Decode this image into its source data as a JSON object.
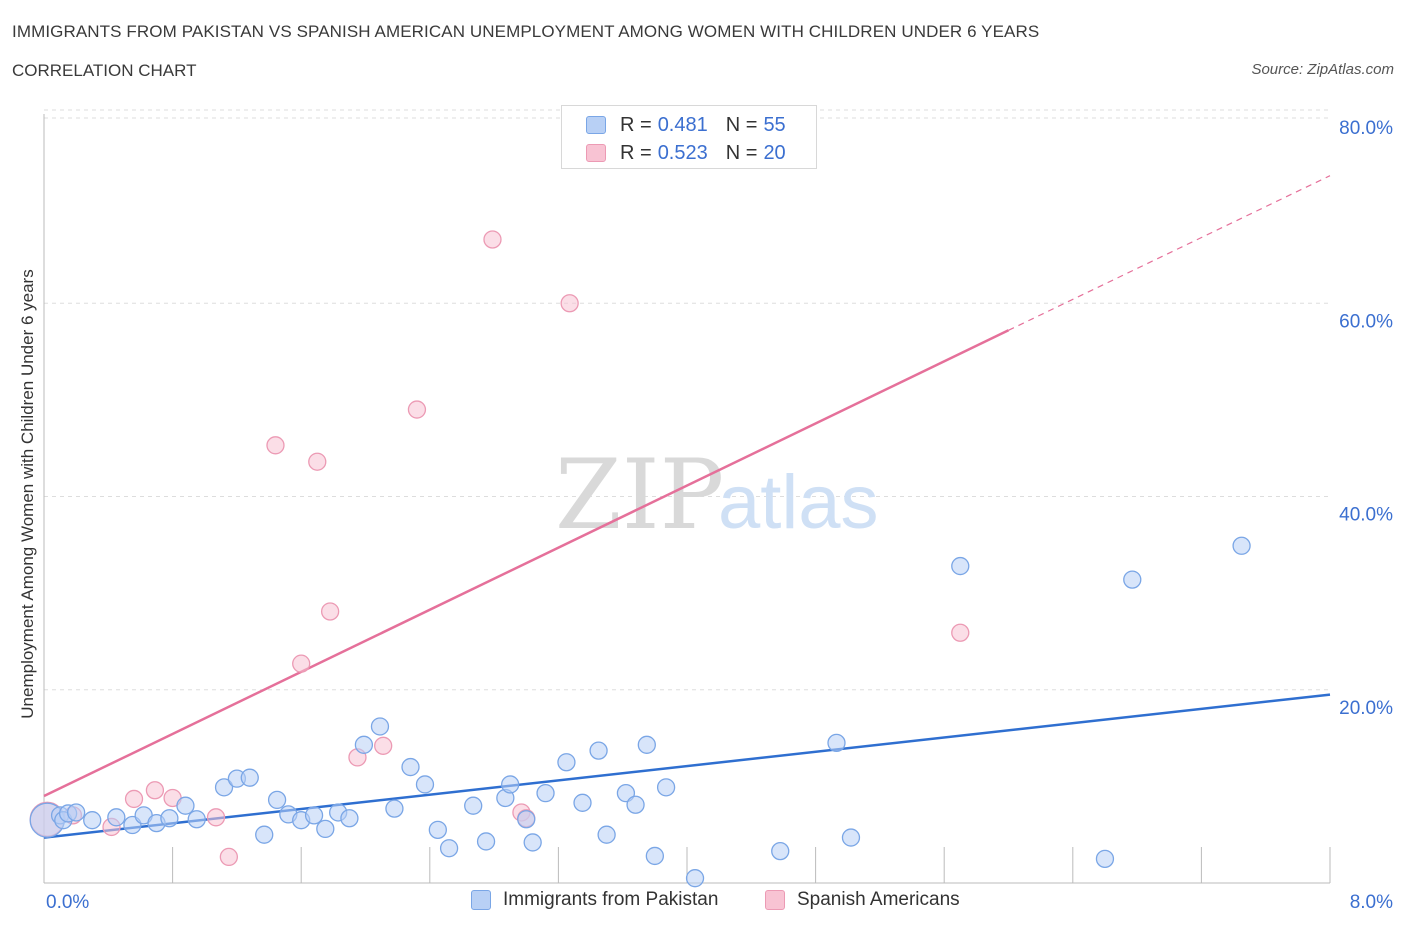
{
  "header": {
    "title": "IMMIGRANTS FROM PAKISTAN VS SPANISH AMERICAN UNEMPLOYMENT AMONG WOMEN WITH CHILDREN UNDER 6 YEARS",
    "subtitle": "CORRELATION CHART",
    "source": "Source: ZipAtlas.com"
  },
  "watermark": {
    "zip": "ZIP",
    "atlas": "atlas"
  },
  "legend_top": [
    {
      "r_label": "R =",
      "r_value": "0.481",
      "n_label": "N =",
      "n_value": "55"
    },
    {
      "r_label": "R =",
      "r_value": "0.523",
      "n_label": "N =",
      "n_value": "20"
    }
  ],
  "legend_bottom": [
    "Immigrants from Pakistan",
    "Spanish Americans"
  ],
  "colors": {
    "blue_fill": "#b8d0f5",
    "blue_stroke": "#7aa6e6",
    "blue_line": "#2f6fd0",
    "pink_fill": "#f8c3d3",
    "pink_stroke": "#ec9ab4",
    "pink_line": "#e5709a",
    "tick_text": "#3b6fd0",
    "grid": "#dddddd"
  },
  "chart_data": {
    "type": "scatter",
    "title": "IMMIGRANTS FROM PAKISTAN VS SPANISH AMERICAN UNEMPLOYMENT AMONG WOMEN WITH CHILDREN UNDER 6 YEARS",
    "xlabel": "",
    "ylabel": "Unemployment Among Women with Children Under 6 years",
    "xlim": [
      0,
      8
    ],
    "ylim": [
      0,
      80
    ],
    "x_tick_labels": [
      "0.0%",
      "8.0%"
    ],
    "y_ticks": [
      20,
      40,
      60,
      80
    ],
    "y_tick_labels": [
      "20.0%",
      "40.0%",
      "60.0%",
      "80.0%"
    ],
    "grid": true,
    "series": [
      {
        "name": "Immigrants from Pakistan",
        "r": 0.481,
        "n": 55,
        "trend": {
          "x0": 0,
          "y0": 4.7,
          "x1": 8,
          "y1": 19.5
        },
        "points": [
          {
            "x": 0.02,
            "y": 6.5,
            "big": true
          },
          {
            "x": 0.1,
            "y": 7.0
          },
          {
            "x": 0.12,
            "y": 6.5
          },
          {
            "x": 0.15,
            "y": 7.2
          },
          {
            "x": 0.2,
            "y": 7.3
          },
          {
            "x": 0.3,
            "y": 6.5
          },
          {
            "x": 0.45,
            "y": 6.8
          },
          {
            "x": 0.55,
            "y": 6.0
          },
          {
            "x": 0.62,
            "y": 7.0
          },
          {
            "x": 0.7,
            "y": 6.2
          },
          {
            "x": 0.78,
            "y": 6.7
          },
          {
            "x": 0.88,
            "y": 8.0
          },
          {
            "x": 0.95,
            "y": 6.6
          },
          {
            "x": 1.12,
            "y": 9.9
          },
          {
            "x": 1.2,
            "y": 10.8
          },
          {
            "x": 1.28,
            "y": 10.9
          },
          {
            "x": 1.37,
            "y": 5.0
          },
          {
            "x": 1.45,
            "y": 8.6
          },
          {
            "x": 1.52,
            "y": 7.1
          },
          {
            "x": 1.6,
            "y": 6.5
          },
          {
            "x": 1.68,
            "y": 7.0
          },
          {
            "x": 1.75,
            "y": 5.6
          },
          {
            "x": 1.83,
            "y": 7.3
          },
          {
            "x": 1.9,
            "y": 6.7
          },
          {
            "x": 1.99,
            "y": 14.3
          },
          {
            "x": 2.09,
            "y": 16.2
          },
          {
            "x": 2.18,
            "y": 7.7
          },
          {
            "x": 2.28,
            "y": 12.0
          },
          {
            "x": 2.37,
            "y": 10.2
          },
          {
            "x": 2.45,
            "y": 5.5
          },
          {
            "x": 2.52,
            "y": 3.6
          },
          {
            "x": 2.67,
            "y": 8.0
          },
          {
            "x": 2.75,
            "y": 4.3
          },
          {
            "x": 2.87,
            "y": 8.8
          },
          {
            "x": 2.9,
            "y": 10.2
          },
          {
            "x": 3.0,
            "y": 6.6
          },
          {
            "x": 3.04,
            "y": 4.2
          },
          {
            "x": 3.12,
            "y": 9.3
          },
          {
            "x": 3.25,
            "y": 12.5
          },
          {
            "x": 3.35,
            "y": 8.3
          },
          {
            "x": 3.45,
            "y": 13.7
          },
          {
            "x": 3.5,
            "y": 5.0
          },
          {
            "x": 3.62,
            "y": 9.3
          },
          {
            "x": 3.68,
            "y": 8.1
          },
          {
            "x": 3.75,
            "y": 14.3
          },
          {
            "x": 3.8,
            "y": 2.8
          },
          {
            "x": 3.87,
            "y": 9.9
          },
          {
            "x": 4.05,
            "y": 0.5
          },
          {
            "x": 4.58,
            "y": 3.3
          },
          {
            "x": 4.93,
            "y": 14.5
          },
          {
            "x": 5.02,
            "y": 4.7
          },
          {
            "x": 5.7,
            "y": 32.8
          },
          {
            "x": 6.6,
            "y": 2.5
          },
          {
            "x": 6.77,
            "y": 31.4
          },
          {
            "x": 7.45,
            "y": 34.9
          }
        ]
      },
      {
        "name": "Spanish Americans",
        "r": 0.523,
        "n": 20,
        "trend": {
          "x0": 0,
          "y0": 9.0,
          "x1": 6.0,
          "y1": 57.2
        },
        "trend_dashed": {
          "x0": 6.0,
          "y0": 57.2,
          "x1": 8.0,
          "y1": 73.2
        },
        "points": [
          {
            "x": 0.02,
            "y": 6.6,
            "big": true
          },
          {
            "x": 0.18,
            "y": 7.0
          },
          {
            "x": 0.42,
            "y": 5.8
          },
          {
            "x": 0.56,
            "y": 8.7
          },
          {
            "x": 0.69,
            "y": 9.6
          },
          {
            "x": 0.8,
            "y": 8.8
          },
          {
            "x": 1.07,
            "y": 6.8
          },
          {
            "x": 1.15,
            "y": 2.7
          },
          {
            "x": 1.44,
            "y": 45.3
          },
          {
            "x": 1.6,
            "y": 22.7
          },
          {
            "x": 1.7,
            "y": 43.6
          },
          {
            "x": 1.78,
            "y": 28.1
          },
          {
            "x": 1.95,
            "y": 13.0
          },
          {
            "x": 2.11,
            "y": 14.2
          },
          {
            "x": 2.32,
            "y": 49.0
          },
          {
            "x": 2.79,
            "y": 66.6
          },
          {
            "x": 2.97,
            "y": 7.3
          },
          {
            "x": 3.0,
            "y": 6.7
          },
          {
            "x": 3.27,
            "y": 60.0
          },
          {
            "x": 5.7,
            "y": 25.9
          }
        ]
      }
    ]
  }
}
